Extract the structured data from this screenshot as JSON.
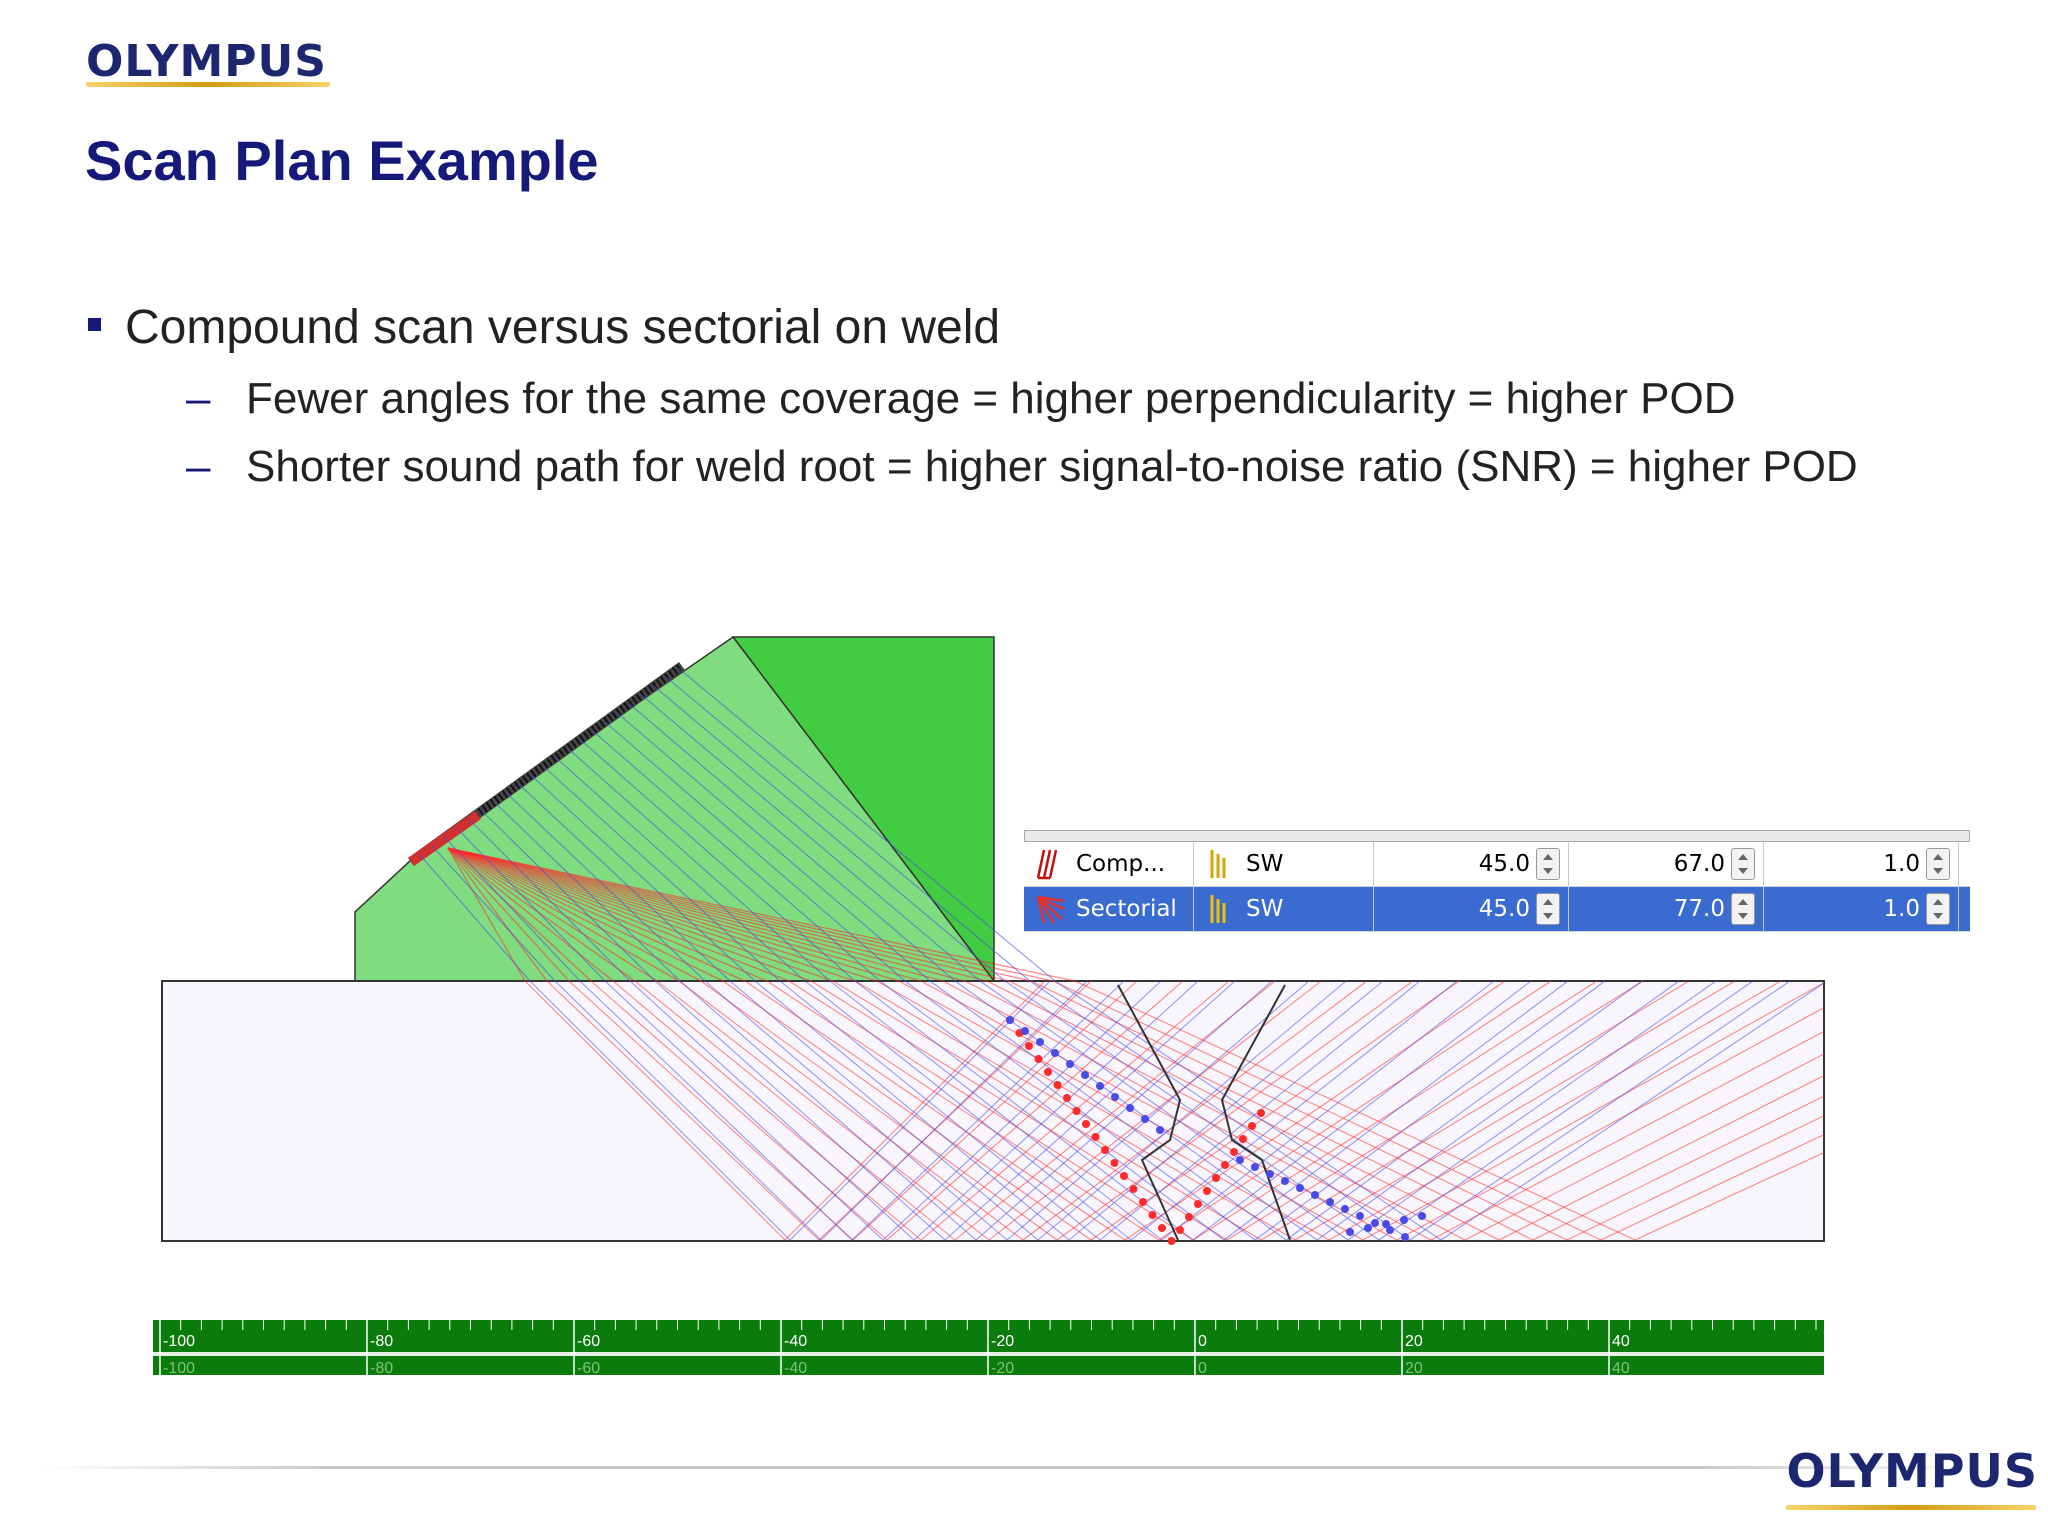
{
  "logo": {
    "text": "OLYMPUS"
  },
  "slide": {
    "title": "Scan Plan Example",
    "bullet": "Compound scan versus sectorial on weld",
    "sub_bullets": [
      "Fewer angles for the same coverage = higher perpendicularity = higher POD",
      "Shorter sound path for weld root = higher signal-to-noise ratio (SNR) = higher POD"
    ],
    "dash": "–"
  },
  "scan_table": {
    "rows": [
      {
        "name": "Comp...",
        "wave": "SW",
        "start": "45.0",
        "end": "67.0",
        "step": "1.0",
        "selected": false
      },
      {
        "name": "Sectorial",
        "wave": "SW",
        "start": "45.0",
        "end": "77.0",
        "step": "1.0",
        "selected": true
      }
    ]
  },
  "ruler": {
    "labels": [
      "-100",
      "-80",
      "-60",
      "-40",
      "-20",
      "0",
      "20",
      "40"
    ]
  },
  "colors": {
    "title": "#14197a",
    "wedge_light": "#7fdc7f",
    "wedge_dark": "#41cc41",
    "beam_red": "#ff2a2a",
    "beam_blue": "#4a4ae6",
    "ruler_green": "#0b7c0b",
    "selection": "#3a6bd0"
  }
}
